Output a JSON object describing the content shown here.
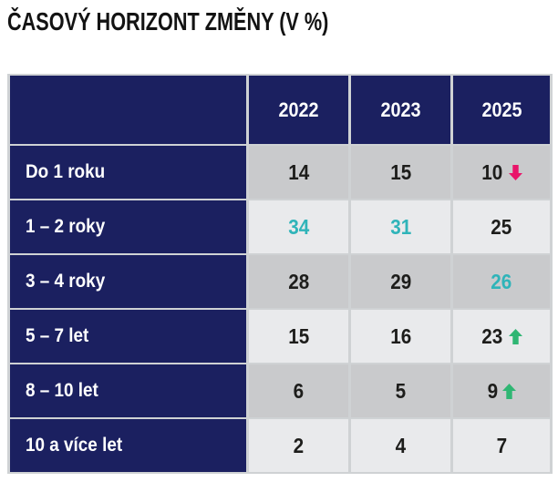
{
  "title": "ČASOVÝ HORIZONT ZMĚNY (V %)",
  "colors": {
    "navy": "#1b2060",
    "row_dark": "#c9cacc",
    "row_light": "#e9eaec",
    "divider": "#cfd2d4",
    "teal": "#2fb4b9",
    "green": "#2fb673",
    "pink": "#e9156a",
    "text_dark": "#1d1d1b"
  },
  "icons": {
    "up": "trend-up-icon",
    "down": "trend-down-icon"
  },
  "chart_data": {
    "type": "table",
    "title": "ČASOVÝ HORIZONT ZMĚNY (V %)",
    "columns": [
      "2022",
      "2023",
      "2025"
    ],
    "rows": [
      {
        "label": "Do 1 roku",
        "values": [
          {
            "value": 14
          },
          {
            "value": 15
          },
          {
            "value": 10,
            "arrow": "down"
          }
        ]
      },
      {
        "label": "1 – 2 roky",
        "values": [
          {
            "value": 34,
            "highlight": true
          },
          {
            "value": 31,
            "highlight": true
          },
          {
            "value": 25
          }
        ]
      },
      {
        "label": "3 – 4 roky",
        "values": [
          {
            "value": 28
          },
          {
            "value": 29
          },
          {
            "value": 26,
            "highlight": true
          }
        ]
      },
      {
        "label": "5 – 7 let",
        "values": [
          {
            "value": 15
          },
          {
            "value": 16
          },
          {
            "value": 23,
            "arrow": "up"
          }
        ]
      },
      {
        "label": "8 – 10 let",
        "values": [
          {
            "value": 6
          },
          {
            "value": 5
          },
          {
            "value": 9,
            "arrow": "up"
          }
        ]
      },
      {
        "label": "10 a více let",
        "values": [
          {
            "value": 2
          },
          {
            "value": 4
          },
          {
            "value": 7
          }
        ]
      }
    ],
    "legend": "none",
    "grid": "cell-borders",
    "value_unit": "%"
  }
}
